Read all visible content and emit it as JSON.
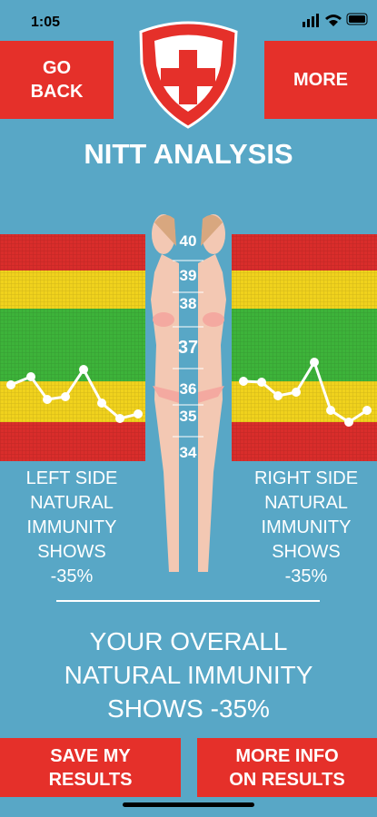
{
  "status_bar": {
    "time": "1:05"
  },
  "header": {
    "back_button": [
      "GO",
      "BACK"
    ],
    "more_button": [
      "MORE"
    ],
    "title": "NITT ANALYSIS"
  },
  "scale": [
    "40",
    "39",
    "38",
    "37",
    "36",
    "35",
    "34"
  ],
  "left_side": [
    "LEFT SIDE",
    "NATURAL",
    "IMMUNITY",
    "SHOWS",
    "-35%"
  ],
  "right_side": [
    "RIGHT SIDE",
    "NATURAL",
    "IMMUNITY",
    "SHOWS",
    "-35%"
  ],
  "overall": [
    "YOUR OVERALL",
    "NATURAL IMMUNITY",
    "SHOWS -35%"
  ],
  "footer": {
    "save_button": [
      "SAVE MY",
      "RESULTS"
    ],
    "info_button": [
      "MORE INFO",
      "ON RESULTS"
    ]
  }
}
